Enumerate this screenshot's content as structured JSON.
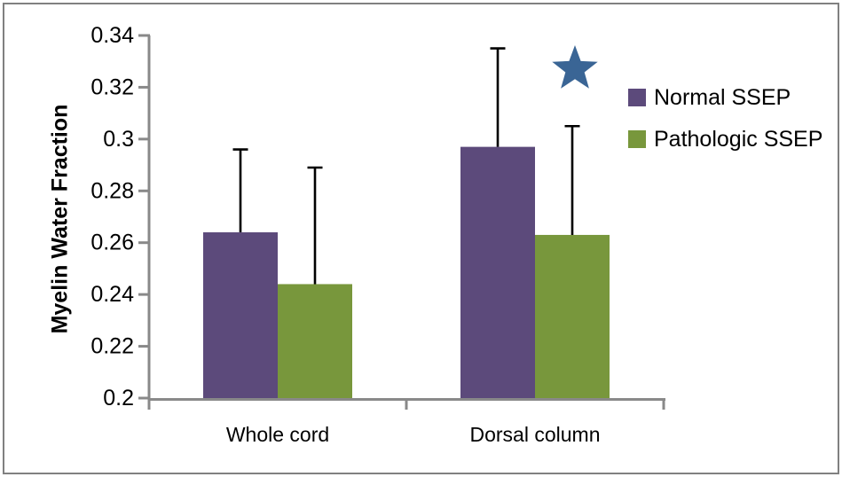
{
  "figure": {
    "background": "#FFFFFF",
    "border_color": "#808080"
  },
  "chart_data": {
    "type": "bar",
    "title": "",
    "ylabel": "Myelin Water Fraction",
    "xlabel": "",
    "categories": [
      "Whole cord",
      "Dorsal column"
    ],
    "series": [
      {
        "name": "Normal SSEP",
        "color": "#5C4A7B",
        "values": [
          0.264,
          0.297
        ],
        "error_up": [
          0.032,
          0.038
        ]
      },
      {
        "name": "Pathologic SSEP",
        "color": "#78973C",
        "values": [
          0.244,
          0.263
        ],
        "error_up": [
          0.045,
          0.042
        ]
      }
    ],
    "ylim": [
      0.2,
      0.34
    ],
    "ytick_step": 0.02,
    "grid": false,
    "legend_position": "right",
    "axis_color": "#898989",
    "error_bar_color": "#000000",
    "annotation": {
      "symbol": "star",
      "color": "#3A6595",
      "above_category": "Dorsal column"
    }
  }
}
